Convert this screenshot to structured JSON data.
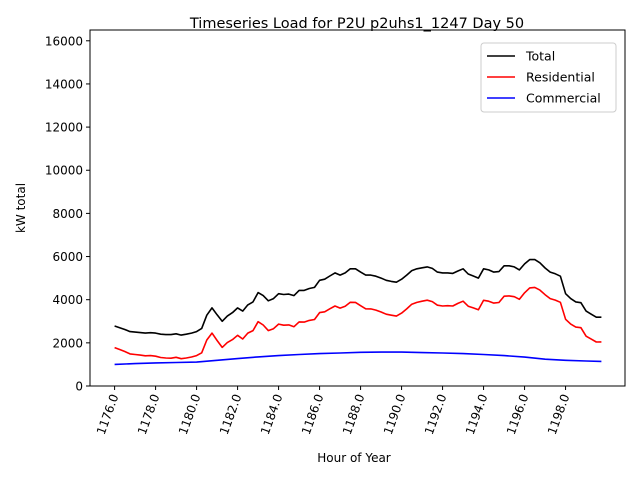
{
  "chart_data": {
    "type": "line",
    "title": "Timeseries Load for P2U p2uhs1_1247  Day 50",
    "xlabel": "Hour of Year",
    "ylabel": "kW total",
    "xlim": [
      1174.8,
      1200.9
    ],
    "ylim": [
      0,
      16500
    ],
    "grid": false,
    "legend_position": "top-right",
    "xticks": [
      1176,
      1178,
      1180,
      1182,
      1184,
      1186,
      1188,
      1190,
      1192,
      1194,
      1196,
      1198
    ],
    "xtick_labels": [
      "1176.0",
      "1178.0",
      "1180.0",
      "1182.0",
      "1184.0",
      "1186.0",
      "1188.0",
      "1190.0",
      "1192.0",
      "1194.0",
      "1196.0",
      "1198.0"
    ],
    "yticks": [
      0,
      2000,
      4000,
      6000,
      8000,
      10000,
      12000,
      14000,
      16000
    ],
    "ytick_labels": [
      "0",
      "2000",
      "4000",
      "6000",
      "8000",
      "10000",
      "12000",
      "14000",
      "16000"
    ],
    "x_start": 1176,
    "x_step": 0.25,
    "series": [
      {
        "name": "Total",
        "color": "#000000",
        "values": [
          2780,
          2700,
          2620,
          2520,
          2500,
          2475,
          2450,
          2470,
          2450,
          2400,
          2380,
          2380,
          2420,
          2360,
          2400,
          2450,
          2520,
          2670,
          3280,
          3620,
          3300,
          3000,
          3240,
          3400,
          3620,
          3470,
          3760,
          3900,
          4330,
          4190,
          3950,
          4050,
          4280,
          4240,
          4260,
          4190,
          4430,
          4430,
          4520,
          4570,
          4900,
          4950,
          5100,
          5240,
          5140,
          5240,
          5430,
          5430,
          5280,
          5140,
          5140,
          5090,
          5000,
          4900,
          4850,
          4810,
          4950,
          5140,
          5350,
          5430,
          5480,
          5520,
          5450,
          5280,
          5240,
          5240,
          5220,
          5330,
          5430,
          5190,
          5100,
          5000,
          5430,
          5380,
          5280,
          5300,
          5570,
          5570,
          5520,
          5380,
          5660,
          5860,
          5860,
          5710,
          5470,
          5280,
          5200,
          5090,
          4280,
          4050,
          3900,
          3860,
          3470,
          3330,
          3190,
          3190
        ]
      },
      {
        "name": "Residential",
        "color": "#ff0000",
        "values": [
          1780,
          1690,
          1600,
          1490,
          1460,
          1430,
          1400,
          1410,
          1380,
          1320,
          1300,
          1290,
          1330,
          1265,
          1300,
          1345,
          1410,
          1540,
          2130,
          2450,
          2110,
          1790,
          2010,
          2150,
          2350,
          2180,
          2450,
          2570,
          2980,
          2825,
          2570,
          2655,
          2870,
          2820,
          2830,
          2750,
          2970,
          2960,
          3040,
          3080,
          3400,
          3440,
          3580,
          3710,
          3610,
          3700,
          3880,
          3875,
          3720,
          3580,
          3575,
          3520,
          3430,
          3330,
          3280,
          3240,
          3380,
          3575,
          3790,
          3875,
          3930,
          3975,
          3910,
          3745,
          3710,
          3720,
          3710,
          3830,
          3930,
          3700,
          3620,
          3530,
          3970,
          3930,
          3840,
          3870,
          4160,
          4175,
          4140,
          4020,
          4320,
          4545,
          4570,
          4445,
          4230,
          4050,
          3980,
          3880,
          3090,
          2870,
          2730,
          2700,
          2310,
          2175,
          2040,
          2045
        ]
      },
      {
        "name": "Commercial",
        "color": "#0000ff",
        "x": [
          1176,
          1177,
          1178,
          1179,
          1180,
          1181,
          1182,
          1183,
          1184,
          1185,
          1186,
          1187,
          1188,
          1189,
          1190,
          1191,
          1192,
          1193,
          1194,
          1195,
          1196,
          1197,
          1198,
          1199,
          1199.75
        ],
        "values": [
          1000,
          1040,
          1070,
          1090,
          1110,
          1190,
          1270,
          1350,
          1410,
          1460,
          1500,
          1530,
          1560,
          1570,
          1570,
          1550,
          1530,
          1500,
          1460,
          1410,
          1340,
          1240,
          1190,
          1160,
          1140
        ]
      }
    ]
  }
}
